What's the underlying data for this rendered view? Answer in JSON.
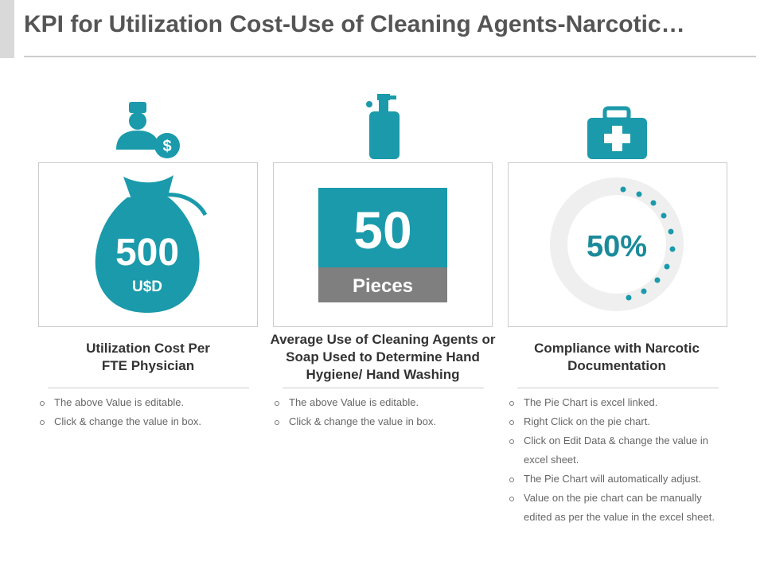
{
  "header": {
    "title": "KPI for Utilization Cost-Use of Cleaning Agents-Narcotic…"
  },
  "cards": [
    {
      "value": "500",
      "unit": "U$D",
      "heading": "Utilization Cost Per FTE Physician",
      "bullets": [
        "The above Value is editable.",
        "Click & change the value in box."
      ]
    },
    {
      "value": "50",
      "unit": "Pieces",
      "heading": "Average Use of Cleaning Agents or Soap Used to Determine Hand Hygiene/ Hand Washing",
      "bullets": [
        "The above Value is editable.",
        "Click & change the value in box."
      ]
    },
    {
      "value": "50%",
      "heading": "Compliance with Narcotic Documentation",
      "bullets": [
        "The Pie Chart is excel linked.",
        "Right Click on the pie chart.",
        "Click on Edit  Data & change the value in excel sheet.",
        "The Pie Chart will automatically adjust.",
        "Value on the pie chart can be manually edited as per the value in the excel sheet."
      ]
    }
  ]
}
